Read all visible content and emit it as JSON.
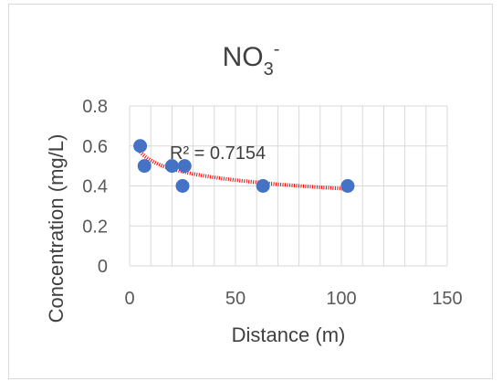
{
  "chart_data": {
    "type": "scatter",
    "title": "NO",
    "title_subscript": "3",
    "title_superscript": "-",
    "xlabel": "Distance (m)",
    "ylabel": "Concentration (mg/L)",
    "xlim": [
      0,
      150
    ],
    "ylim": [
      0,
      0.8
    ],
    "x_ticks": [
      0,
      50,
      100,
      150
    ],
    "y_ticks": [
      "0",
      "0.2",
      "0.4",
      "0.6",
      "0.8"
    ],
    "grid": true,
    "legend": "none",
    "series": [
      {
        "points": [
          {
            "x": 5,
            "y": 0.6
          },
          {
            "x": 7,
            "y": 0.5
          },
          {
            "x": 20,
            "y": 0.5
          },
          {
            "x": 26,
            "y": 0.5
          },
          {
            "x": 25,
            "y": 0.4
          },
          {
            "x": 63,
            "y": 0.4
          },
          {
            "x": 103,
            "y": 0.4
          }
        ],
        "color": "#4472c4"
      }
    ],
    "trendline": {
      "type": "logarithmic",
      "color": "#ff0000",
      "x_range": [
        5,
        103
      ],
      "y_at_start": 0.57,
      "y_at_end": 0.385
    },
    "annotation": "R² = 0.7154"
  }
}
